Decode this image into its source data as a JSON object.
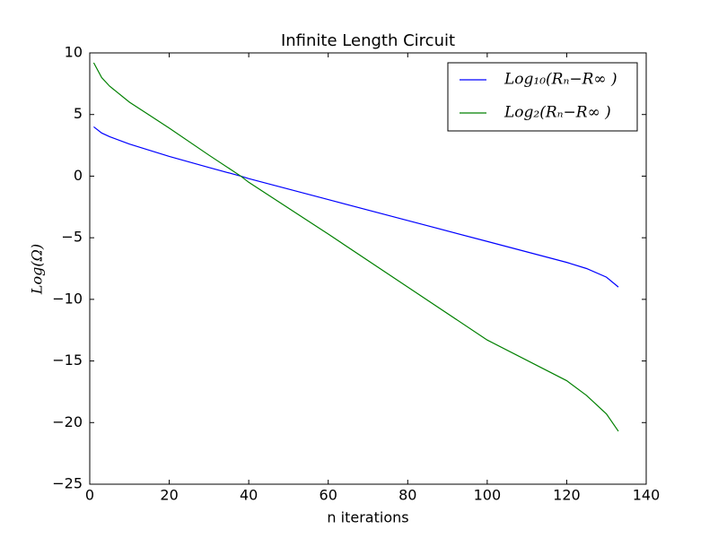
{
  "chart_data": {
    "type": "line",
    "title": "Infinite Length Circuit",
    "x_label": "n iterations",
    "y_label": "Log(Ω)",
    "x": [
      1,
      3,
      5,
      10,
      20,
      30,
      38,
      40,
      60,
      80,
      100,
      120,
      125,
      130,
      133
    ],
    "series": [
      {
        "name": "Log₁₀(Rₙ−R∞ )",
        "color": "#0000ff",
        "values": [
          4.0,
          3.5,
          3.2,
          2.6,
          1.6,
          0.7,
          0,
          -0.2,
          -1.9,
          -3.6,
          -5.3,
          -7.0,
          -7.5,
          -8.2,
          -9.0
        ]
      },
      {
        "name": "Log₂(Rₙ−R∞ )",
        "color": "#008000",
        "values": [
          9.2,
          8.0,
          7.3,
          6.0,
          3.9,
          1.7,
          0,
          -0.5,
          -4.7,
          -9.0,
          -13.3,
          -16.6,
          -17.8,
          -19.3,
          -20.7
        ]
      }
    ],
    "xlim": [
      0,
      140
    ],
    "xticks": [
      0,
      20,
      40,
      60,
      80,
      100,
      120,
      140
    ],
    "ylim": [
      -25,
      10
    ],
    "yticks": [
      {
        "value": -25,
        "label": "−25"
      },
      {
        "value": -20,
        "label": "−20"
      },
      {
        "value": -15,
        "label": "−15"
      },
      {
        "value": -10,
        "label": "−10"
      },
      {
        "value": -5,
        "label": "−5"
      },
      0,
      5,
      10
    ],
    "legend": "upper right",
    "grid": false
  }
}
